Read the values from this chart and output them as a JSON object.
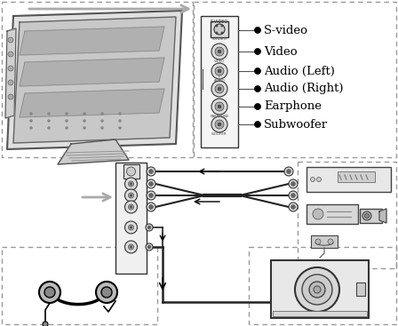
{
  "bg_color": "#ffffff",
  "dashed_color": "#999999",
  "line_color": "#000000",
  "arrow_color": "#aaaaaa",
  "text_color": "#000000",
  "labels": [
    "S-video",
    "Video",
    "Audio (Left)",
    "Audio (Right)",
    "Earphone",
    "Subwoofer"
  ],
  "label_fontsize": 9.5,
  "figsize": [
    4.48,
    3.67
  ],
  "dpi": 100
}
